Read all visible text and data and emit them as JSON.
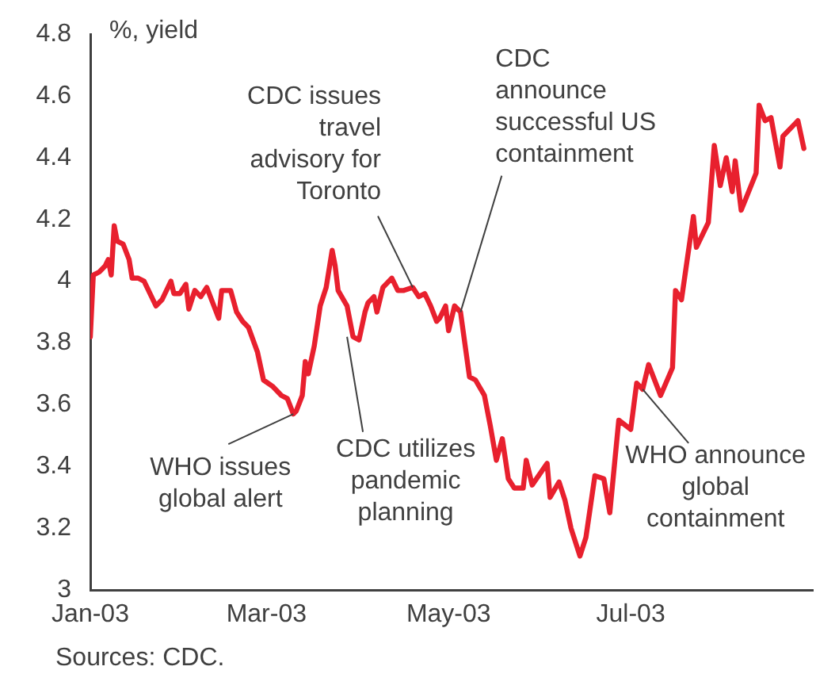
{
  "chart_data": {
    "type": "line",
    "ylabel": "%, yield",
    "legend": false,
    "grid": false,
    "marker": "none",
    "line_style": "solid",
    "xlim": [
      "2003-01-01",
      "2003-08-31"
    ],
    "xticks": [
      {
        "value": "2003-01-01",
        "label": "Jan-03"
      },
      {
        "value": "2003-03-01",
        "label": "Mar-03"
      },
      {
        "value": "2003-05-01",
        "label": "May-03"
      },
      {
        "value": "2003-07-01",
        "label": "Jul-03"
      }
    ],
    "ylim": [
      3,
      4.8
    ],
    "yticks": [
      3,
      3.2,
      3.4,
      3.6,
      3.8,
      4,
      4.2,
      4.4,
      4.6,
      4.8
    ],
    "x": [
      "2003-01-01",
      "2003-01-02",
      "2003-01-04",
      "2003-01-06",
      "2003-01-07",
      "2003-01-08",
      "2003-01-09",
      "2003-01-10",
      "2003-01-12",
      "2003-01-14",
      "2003-01-15",
      "2003-01-17",
      "2003-01-19",
      "2003-01-23",
      "2003-01-25",
      "2003-01-28",
      "2003-01-29",
      "2003-01-31",
      "2003-02-02",
      "2003-02-03",
      "2003-02-05",
      "2003-02-07",
      "2003-02-09",
      "2003-02-13",
      "2003-02-14",
      "2003-02-17",
      "2003-02-19",
      "2003-02-21",
      "2003-02-23",
      "2003-02-26",
      "2003-02-28",
      "2003-03-03",
      "2003-03-06",
      "2003-03-08",
      "2003-03-10",
      "2003-03-11",
      "2003-03-13",
      "2003-03-14",
      "2003-03-15",
      "2003-03-17",
      "2003-03-19",
      "2003-03-21",
      "2003-03-23",
      "2003-03-24",
      "2003-03-25",
      "2003-03-28",
      "2003-03-30",
      "2003-04-01",
      "2003-04-03",
      "2003-04-04",
      "2003-04-06",
      "2003-04-07",
      "2003-04-09",
      "2003-04-12",
      "2003-04-14",
      "2003-04-16",
      "2003-04-19",
      "2003-04-21",
      "2003-04-23",
      "2003-04-25",
      "2003-04-27",
      "2003-04-28",
      "2003-04-30",
      "2003-05-01",
      "2003-05-03",
      "2003-05-05",
      "2003-05-08",
      "2003-05-10",
      "2003-05-13",
      "2003-05-15",
      "2003-05-17",
      "2003-05-19",
      "2003-05-21",
      "2003-05-23",
      "2003-05-26",
      "2003-05-27",
      "2003-05-29",
      "2003-06-03",
      "2003-06-04",
      "2003-06-07",
      "2003-06-09",
      "2003-06-11",
      "2003-06-14",
      "2003-06-16",
      "2003-06-19",
      "2003-06-22",
      "2003-06-24",
      "2003-06-27",
      "2003-07-01",
      "2003-07-03",
      "2003-07-05",
      "2003-07-07",
      "2003-07-11",
      "2003-07-15",
      "2003-07-16",
      "2003-07-18",
      "2003-07-22",
      "2003-07-23",
      "2003-07-27",
      "2003-07-29",
      "2003-07-31",
      "2003-08-02",
      "2003-08-04",
      "2003-08-05",
      "2003-08-07",
      "2003-08-12",
      "2003-08-13",
      "2003-08-15",
      "2003-08-17",
      "2003-08-20",
      "2003-08-21",
      "2003-08-25",
      "2003-08-26",
      "2003-08-28"
    ],
    "series": [
      {
        "color": "#e8202e",
        "values": [
          3.82,
          4.02,
          4.03,
          4.05,
          4.07,
          4.02,
          4.18,
          4.13,
          4.12,
          4.07,
          4.01,
          4.01,
          4.0,
          3.92,
          3.94,
          4.0,
          3.96,
          3.96,
          3.99,
          3.91,
          3.97,
          3.95,
          3.98,
          3.88,
          3.97,
          3.97,
          3.9,
          3.87,
          3.85,
          3.77,
          3.68,
          3.66,
          3.63,
          3.62,
          3.57,
          3.58,
          3.63,
          3.74,
          3.7,
          3.79,
          3.92,
          3.98,
          4.1,
          4.05,
          3.97,
          3.92,
          3.82,
          3.81,
          3.9,
          3.93,
          3.95,
          3.9,
          3.98,
          4.01,
          3.97,
          3.97,
          3.98,
          3.95,
          3.96,
          3.92,
          3.87,
          3.88,
          3.92,
          3.84,
          3.92,
          3.9,
          3.69,
          3.68,
          3.63,
          3.53,
          3.42,
          3.49,
          3.36,
          3.33,
          3.33,
          3.42,
          3.34,
          3.41,
          3.3,
          3.35,
          3.29,
          3.2,
          3.11,
          3.17,
          3.37,
          3.36,
          3.25,
          3.55,
          3.52,
          3.67,
          3.65,
          3.73,
          3.63,
          3.72,
          3.97,
          3.94,
          4.21,
          4.11,
          4.19,
          4.44,
          4.31,
          4.4,
          4.29,
          4.39,
          4.23,
          4.35,
          4.57,
          4.52,
          4.53,
          4.37,
          4.47,
          4.51,
          4.52,
          4.43
        ]
      }
    ],
    "annotations": [
      {
        "text": "CDC issues\ntravel\nadvisory for\nToronto",
        "x": "2003-04-19",
        "y": 3.98
      },
      {
        "text": "CDC\nannounce\nsuccessful US\ncontainment",
        "x": "2003-05-05",
        "y": 3.9
      },
      {
        "text": "WHO issues\nglobal alert",
        "x": "2003-03-10",
        "y": 3.57
      },
      {
        "text": "CDC utilizes\npandemic\nplanning",
        "x": "2003-03-28",
        "y": 3.82
      },
      {
        "text": "WHO announce\nglobal\ncontainment",
        "x": "2003-07-05",
        "y": 3.65
      },
      "Sources: CDC."
    ]
  }
}
